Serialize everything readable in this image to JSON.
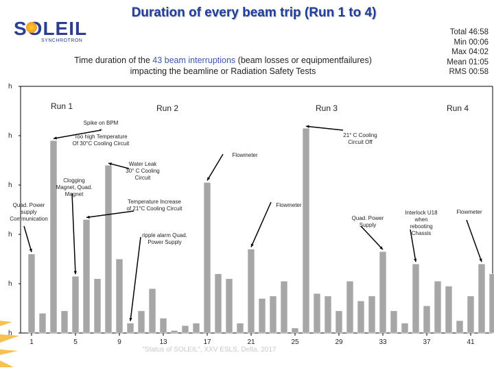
{
  "title": "Duration of every beam trip (Run 1 to 4)",
  "logo": {
    "name": "SOLEIL",
    "sub": "SYNCHROTRON"
  },
  "stats": [
    "Total 46:58",
    "Min 00:06",
    "Max 04:02",
    "Mean 01:05",
    "RMS 00:58"
  ],
  "subtitle": {
    "before": "Time duration of the ",
    "highlight": "43 beam interruptions",
    "after": " (beam losses or equipmentfailures)",
    "line2": "impacting the beamline or Radiation Safety Tests"
  },
  "footer": "\"Status of SOLEIL\", XXV ESLS, Delta, 2017",
  "colors": {
    "bar": "#a6a6a6",
    "bar_edge": "#ffffff",
    "title": "#1f3d9c",
    "highlight": "#3a56b0",
    "axis": "#000000"
  },
  "chart_data": {
    "type": "bar",
    "xlabel": "",
    "ylabel": "",
    "y_tick_labels": [
      "h",
      "h",
      "h",
      "h",
      "h",
      "h"
    ],
    "x_tick_labels": [
      "1",
      "5",
      "9",
      "13",
      "17",
      "21",
      "25",
      "29",
      "33",
      "37",
      "41"
    ],
    "ylim": [
      0,
      5
    ],
    "x": [
      1,
      2,
      3,
      4,
      5,
      6,
      7,
      8,
      9,
      10,
      11,
      12,
      13,
      14,
      15,
      16,
      17,
      18,
      19,
      20,
      21,
      22,
      23,
      24,
      25,
      26,
      27,
      28,
      29,
      30,
      31,
      32,
      33,
      34,
      35,
      36,
      37,
      38,
      39,
      40,
      41,
      42,
      43
    ],
    "values": [
      1.6,
      0.4,
      3.9,
      0.45,
      1.15,
      2.3,
      1.1,
      3.4,
      1.5,
      0.2,
      0.45,
      0.9,
      0.3,
      0.05,
      0.15,
      0.2,
      3.05,
      1.2,
      1.1,
      0.2,
      1.7,
      0.7,
      0.75,
      1.05,
      0.1,
      4.15,
      0.8,
      0.75,
      0.45,
      1.05,
      0.65,
      0.75,
      1.65,
      0.45,
      0.2,
      1.4,
      0.55,
      1.05,
      0.95,
      0.25,
      0.75,
      1.4,
      1.2
    ],
    "runs": [
      {
        "label": "Run 1",
        "x_start": 0.5
      },
      {
        "label": "Run 2",
        "x_start": 4.5
      },
      {
        "label": "Run 3",
        "x_start": 19.5
      },
      {
        "label": "Run 4",
        "x_start": 36.5
      }
    ],
    "annotations": [
      {
        "text": [
          "Spike on BPM",
          "+",
          "Too high Temperature",
          "Of 30°C Cooling Circuit"
        ],
        "bar": 3
      },
      {
        "text": [
          "21° C Cooling",
          "Circuit Off"
        ],
        "bar": 26
      },
      {
        "text": [
          "Flowmeter"
        ],
        "bar": 17
      },
      {
        "text": [
          "Water Leak",
          "30° C Cooling",
          "Circuit"
        ],
        "bar": 8
      },
      {
        "text": [
          "Clogging",
          "Magnet, Quad.",
          "Magnet"
        ],
        "bar": 5
      },
      {
        "text": [
          "Temperature Increase",
          "of 21°C Cooling Circuit"
        ],
        "bar": 6
      },
      {
        "text": [
          "Flowmeter"
        ],
        "bar": 21
      },
      {
        "text": [
          "Quad. Power",
          "supply",
          "Communication"
        ],
        "bar": 1
      },
      {
        "text": [
          "Quad. Power",
          "Supply"
        ],
        "bar": 33
      },
      {
        "text": [
          "Interlock U18",
          "when",
          "rebooting",
          "Chassis"
        ],
        "bar": 36
      },
      {
        "text": [
          "Flowmeter"
        ],
        "bar": 42
      },
      {
        "text": [
          "ripple alarm Quad.",
          "Power Supply"
        ],
        "bar": 10
      }
    ]
  }
}
